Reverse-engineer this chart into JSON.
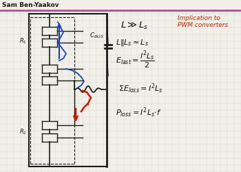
{
  "bg_color": "#f0efe8",
  "header_bar_color": "#b05090",
  "header_text": "Sam Ben-Yaakov",
  "header_text_color": "#1a1a1a",
  "header_font_size": 6.5,
  "implication_text_color": "#cc2200",
  "implication_line1": "Implication to",
  "implication_line2": "PWM converters",
  "implication_font_size": 6.5,
  "formula_color": "#111111",
  "formula_font_size": 8.0,
  "grid_color": "#d8d8cc",
  "circuit_color": "#1a1a1a",
  "blue_color": "#1a44bb",
  "red_color": "#cc1a00"
}
